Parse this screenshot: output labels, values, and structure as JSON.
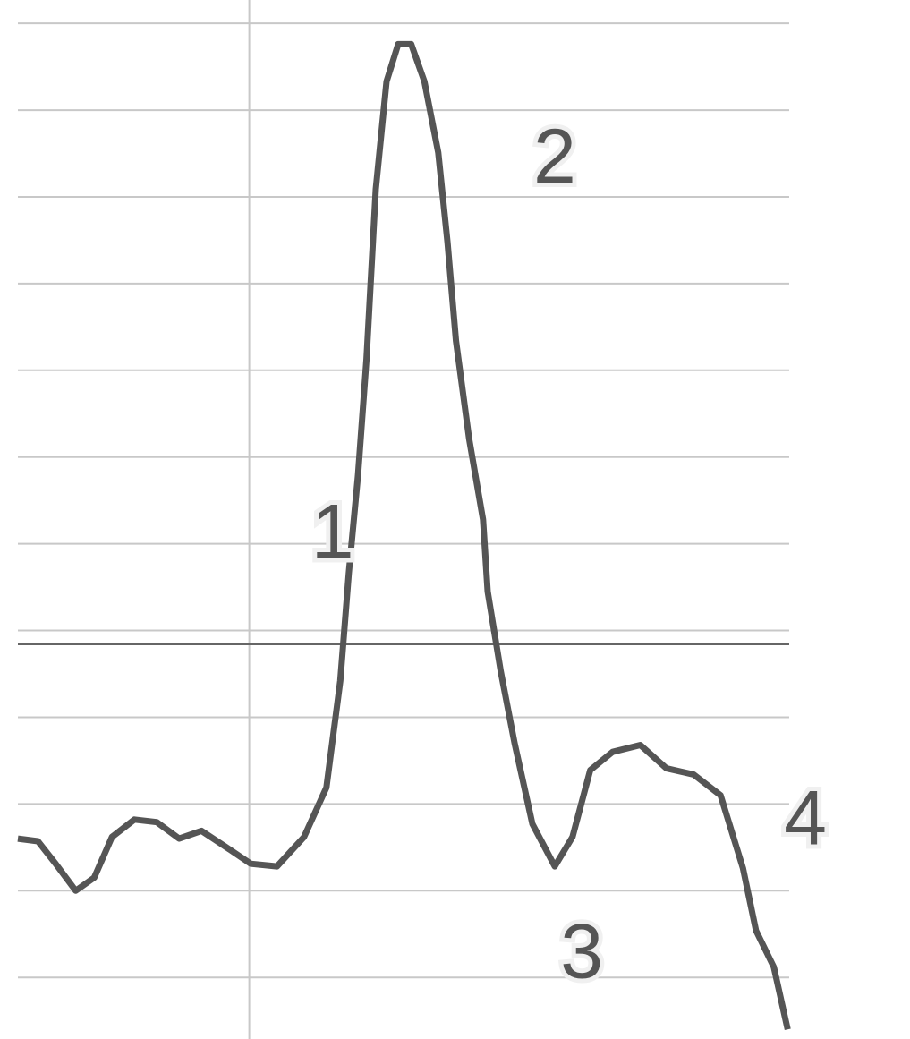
{
  "chart_data": {
    "type": "line",
    "xlim": [
      0,
      10
    ],
    "ylim": [
      -4.71,
      7.27
    ],
    "grid": true,
    "y_gridlines": [
      -4,
      -3,
      -2,
      -1,
      0,
      1,
      2,
      3,
      4,
      5,
      6,
      7
    ],
    "x_gridlines": [
      3
    ],
    "reference_line": -0.16,
    "series": [
      {
        "color": "#555555",
        "x": [
          0,
          0.26,
          0.49,
          0.75,
          0.99,
          1.22,
          1.51,
          1.8,
          2.09,
          2.38,
          2.67,
          3.02,
          3.36,
          3.71,
          4.0,
          4.18,
          4.29,
          4.41,
          4.52,
          4.64,
          4.78,
          4.93,
          5.1,
          5.27,
          5.45,
          5.57,
          5.68,
          5.85,
          6.03,
          6.09,
          6.26,
          6.44,
          6.67,
          6.96,
          7.19,
          7.42,
          7.71,
          8.07,
          8.41,
          8.76,
          9.11,
          9.4,
          9.57,
          9.8,
          9.98
        ],
        "values": [
          -2.4,
          -2.43,
          -2.69,
          -3.0,
          -2.85,
          -2.38,
          -2.18,
          -2.21,
          -2.4,
          -2.31,
          -2.48,
          -2.69,
          -2.72,
          -2.38,
          -1.81,
          -0.58,
          0.66,
          1.79,
          3.13,
          5.09,
          6.33,
          6.76,
          6.76,
          6.33,
          5.51,
          4.48,
          3.34,
          2.21,
          1.28,
          0.45,
          -0.47,
          -1.3,
          -2.23,
          -2.72,
          -2.38,
          -1.61,
          -1.4,
          -1.32,
          -1.59,
          -1.66,
          -1.9,
          -2.74,
          -3.46,
          -3.88,
          -4.6
        ]
      }
    ],
    "annotations": [
      {
        "text": "1",
        "x": 4.08,
        "y": 1.07
      },
      {
        "text": "2",
        "x": 6.96,
        "y": 5.4
      },
      {
        "text": "3",
        "x": 7.31,
        "y": -3.77
      },
      {
        "text": "4",
        "x": 10.21,
        "y": -2.23
      }
    ]
  }
}
